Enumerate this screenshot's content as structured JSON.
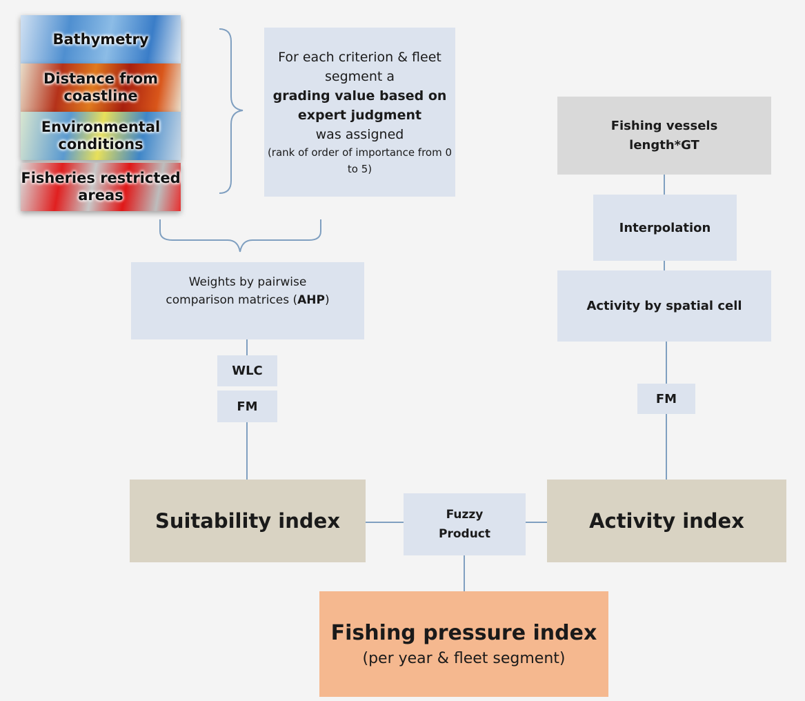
{
  "maps": [
    {
      "label": "Bathymetry"
    },
    {
      "label": "Distance from coastline"
    },
    {
      "label": "Environmental conditions"
    },
    {
      "label": "Fisheries restricted areas"
    }
  ],
  "grading": {
    "intro": "For each criterion & fleet segment a",
    "emphasis": "grading value based on expert judgment",
    "outro": "was assigned",
    "note": "(rank of order of importance from 0 to 5)"
  },
  "weights": {
    "text": "Weights by pairwise comparison matrices (",
    "emphasis": "AHP",
    "close": ")"
  },
  "nodes": {
    "wlc": "WLC",
    "fm_left": "FM",
    "vessels": "Fishing vessels length*GT",
    "interpolation": "Interpolation",
    "activity_cell": "Activity by spatial cell",
    "fm_right": "FM",
    "suitability": "Suitability index",
    "activity_index": "Activity index",
    "fuzzy": "Fuzzy Product"
  },
  "result": {
    "title": "Fishing pressure index",
    "subtitle": "(per year & fleet segment)"
  }
}
